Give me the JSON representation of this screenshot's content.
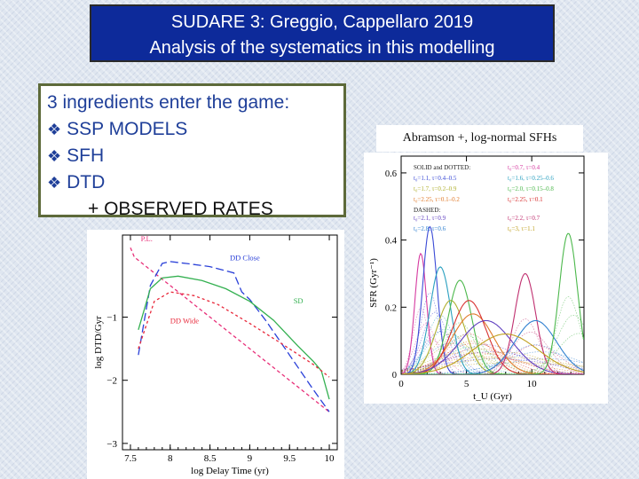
{
  "slide": {
    "title_line1": "SUDARE 3: Greggio, Cappellaro 2019",
    "title_line2": "Analysis of the systematics in this modelling"
  },
  "ingredients": {
    "heading": "3 ingredients enter the game:",
    "bullet_glyph": "❖",
    "items": [
      "SSP MODELS",
      "SFH",
      "DTD"
    ],
    "extra": "+ OBSERVED RATES"
  },
  "right_figure": {
    "caption": "Abramson +, log-normal SFHs"
  },
  "colors": {
    "title_bg": "#0d2a9a",
    "bullet_text": "#1f3f99",
    "box_border": "#5d6a3a"
  },
  "chart_data": [
    {
      "type": "line",
      "xlabel": "log Delay Time (yr)",
      "ylabel": "log DTD/Gyr",
      "xticks": [
        "7.5",
        "8",
        "8.5",
        "9",
        "9.5",
        "10"
      ],
      "yticks": [
        "-1",
        "-2",
        "-3"
      ],
      "xlim": [
        7.4,
        10.1
      ],
      "ylim": [
        -3.1,
        0.3
      ],
      "grid": false,
      "series": [
        {
          "name": "P.L.",
          "color": "#e8317a",
          "dash": "4 3",
          "x": [
            7.5,
            7.55,
            7.7,
            8.0,
            8.5,
            9.0,
            9.5,
            10.0
          ],
          "y": [
            0.1,
            -0.05,
            -0.2,
            -0.5,
            -1.0,
            -1.5,
            -2.0,
            -2.5
          ]
        },
        {
          "name": "DD Close",
          "color": "#2a40d8",
          "dash": "9 4",
          "x": [
            7.6,
            7.75,
            7.9,
            8.0,
            8.2,
            8.5,
            8.8,
            8.9,
            9.0,
            9.2,
            9.5,
            9.8,
            10.0
          ],
          "y": [
            -1.6,
            -0.5,
            -0.15,
            -0.12,
            -0.15,
            -0.2,
            -0.3,
            -0.6,
            -0.72,
            -1.05,
            -1.6,
            -2.15,
            -2.5
          ]
        },
        {
          "name": "SD",
          "color": "#33b050",
          "dash": "",
          "x": [
            7.6,
            7.75,
            7.9,
            8.1,
            8.4,
            8.7,
            9.0,
            9.3,
            9.6,
            9.8,
            9.9,
            10.0
          ],
          "y": [
            -1.2,
            -0.55,
            -0.38,
            -0.35,
            -0.42,
            -0.55,
            -0.75,
            -1.05,
            -1.45,
            -1.7,
            -1.85,
            -2.3
          ]
        },
        {
          "name": "DD Wide",
          "color": "#e8283a",
          "dash": "3 3",
          "x": [
            7.6,
            7.8,
            8.0,
            8.3,
            8.6,
            9.0,
            9.4,
            9.8,
            10.0
          ],
          "y": [
            -1.5,
            -0.75,
            -0.6,
            -0.66,
            -0.8,
            -1.1,
            -1.42,
            -1.75,
            -1.95
          ]
        }
      ],
      "annotations": [
        "P.L.",
        "DD Close",
        "SD",
        "DD Wide"
      ]
    },
    {
      "type": "line",
      "xlabel": "t_U (Gyr)",
      "ylabel": "SFR (Gyr⁻¹)",
      "xticks": [
        "0",
        "5",
        "10"
      ],
      "yticks": [
        "0",
        "0.2",
        "0.4",
        "0.6"
      ],
      "xlim": [
        0,
        14
      ],
      "ylim": [
        0,
        0.65
      ],
      "grid": false,
      "legend": {
        "header_solid": "SOLID and DOTTED:",
        "header_dashed": "DASHED:",
        "entries": [
          {
            "text": "t₀=0.7, τ=0.4",
            "color": "#d63aa0"
          },
          {
            "text": "t₀=1.1, τ=0.4–0.5",
            "color": "#3a4ad6"
          },
          {
            "text": "t₀=1.6, τ=0.25–0.6",
            "color": "#2aa0c0"
          },
          {
            "text": "t₀=1.7, τ=0.2–0.9",
            "color": "#b0b030"
          },
          {
            "text": "t₀=2.0, τ=0.15–0.8",
            "color": "#4cb84c"
          },
          {
            "text": "t₀=2.25, τ=0.1–0.2",
            "color": "#e07a2a"
          },
          {
            "text": "t₀=2.25, τ=0.1",
            "color": "#d83030"
          },
          {
            "text": "t₀=2.1, τ=0.9",
            "color": "#6040c0"
          },
          {
            "text": "t₀=2.2, τ=0.7",
            "color": "#c03070"
          },
          {
            "text": "t₀=2.8, τ=0.6",
            "color": "#3080d0"
          },
          {
            "text": "t₀=3, τ=1.1",
            "color": "#c0a020"
          }
        ]
      },
      "series": [
        {
          "name": "",
          "color": "#d63aa0",
          "peak_x": 1.5,
          "peak_y": 0.36,
          "width": 0.45
        },
        {
          "name": "",
          "color": "#3a4ad6",
          "peak_x": 2.2,
          "peak_y": 0.44,
          "width": 0.55
        },
        {
          "name": "",
          "color": "#2aa0c0",
          "peak_x": 3.0,
          "peak_y": 0.32,
          "width": 0.8
        },
        {
          "name": "",
          "color": "#b0b030",
          "peak_x": 3.8,
          "peak_y": 0.22,
          "width": 1.1
        },
        {
          "name": "",
          "color": "#4cb84c",
          "peak_x": 4.5,
          "peak_y": 0.28,
          "width": 0.9
        },
        {
          "name": "",
          "color": "#e07a2a",
          "peak_x": 5.5,
          "peak_y": 0.18,
          "width": 1.6
        },
        {
          "name": "",
          "color": "#d83030",
          "peak_x": 5.2,
          "peak_y": 0.22,
          "width": 1.3
        },
        {
          "name": "",
          "color": "#6040c0",
          "peak_x": 6.5,
          "peak_y": 0.16,
          "width": 2.0
        },
        {
          "name": "",
          "color": "#c03070",
          "peak_x": 9.5,
          "peak_y": 0.3,
          "width": 0.8
        },
        {
          "name": "",
          "color": "#3080d0",
          "peak_x": 10.3,
          "peak_y": 0.16,
          "width": 1.6
        },
        {
          "name": "",
          "color": "#4cb84c",
          "peak_x": 12.8,
          "peak_y": 0.42,
          "width": 0.7
        },
        {
          "name": "",
          "color": "#c0a020",
          "peak_x": 8.0,
          "peak_y": 0.12,
          "width": 2.5
        }
      ]
    }
  ]
}
